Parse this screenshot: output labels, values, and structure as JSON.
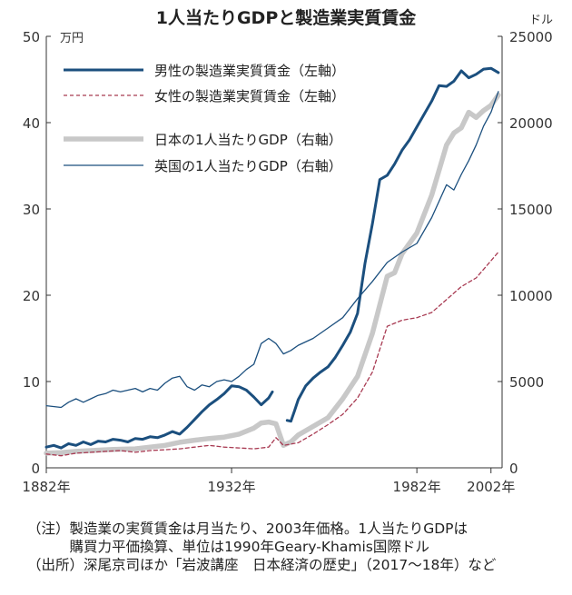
{
  "chart_data": {
    "type": "line",
    "title": "1人当たりGDPと製造業実質賃金",
    "y_left": {
      "unit": "万円",
      "ylim": [
        0,
        50
      ],
      "ticks": [
        "0",
        "10",
        "20",
        "30",
        "40",
        "50"
      ]
    },
    "y_right": {
      "unit": "ドル",
      "ylim": [
        0,
        25000
      ],
      "ticks": [
        "0",
        "5000",
        "10000",
        "15000",
        "20000",
        "25000"
      ]
    },
    "x": {
      "xlim": [
        1882,
        2005
      ],
      "tick_labels": [
        {
          "value": 1882,
          "label": "1882年"
        },
        {
          "value": 1932,
          "label": "1932年"
        },
        {
          "value": 1982,
          "label": "1982年"
        },
        {
          "value": 2002,
          "label": "2002年"
        }
      ]
    },
    "grid": false,
    "legend_placement": "top-left",
    "series": [
      {
        "name": "男性の製造業実質賃金（左軸）",
        "axis": "left",
        "color": "#1b4f7e",
        "style": "solid-thick",
        "segments": [
          [
            [
              1882,
              2.4
            ],
            [
              1884,
              2.6
            ],
            [
              1886,
              2.3
            ],
            [
              1888,
              2.8
            ],
            [
              1890,
              2.6
            ],
            [
              1892,
              3.0
            ],
            [
              1894,
              2.7
            ],
            [
              1896,
              3.1
            ],
            [
              1898,
              3.0
            ],
            [
              1900,
              3.3
            ],
            [
              1902,
              3.2
            ],
            [
              1904,
              3.0
            ],
            [
              1906,
              3.4
            ],
            [
              1908,
              3.3
            ],
            [
              1910,
              3.6
            ],
            [
              1912,
              3.5
            ],
            [
              1914,
              3.8
            ],
            [
              1916,
              4.2
            ],
            [
              1918,
              3.9
            ],
            [
              1920,
              4.7
            ],
            [
              1922,
              5.6
            ],
            [
              1924,
              6.5
            ],
            [
              1926,
              7.3
            ],
            [
              1928,
              7.9
            ],
            [
              1930,
              8.6
            ],
            [
              1932,
              9.5
            ],
            [
              1934,
              9.4
            ],
            [
              1936,
              9.0
            ],
            [
              1938,
              8.2
            ],
            [
              1940,
              7.3
            ],
            [
              1942,
              8.1
            ],
            [
              1943,
              8.8
            ]
          ],
          [
            [
              1947,
              5.5
            ],
            [
              1948,
              5.4
            ],
            [
              1949,
              6.6
            ],
            [
              1950,
              7.9
            ],
            [
              1952,
              9.5
            ],
            [
              1954,
              10.4
            ],
            [
              1956,
              11.1
            ],
            [
              1958,
              11.7
            ],
            [
              1960,
              12.8
            ],
            [
              1962,
              14.2
            ],
            [
              1964,
              15.7
            ],
            [
              1966,
              17.9
            ],
            [
              1968,
              23.7
            ],
            [
              1970,
              28.3
            ],
            [
              1972,
              33.4
            ],
            [
              1974,
              33.9
            ],
            [
              1976,
              35.2
            ],
            [
              1978,
              36.8
            ],
            [
              1980,
              38.0
            ],
            [
              1982,
              39.5
            ],
            [
              1984,
              41.0
            ],
            [
              1986,
              42.5
            ],
            [
              1988,
              44.3
            ],
            [
              1990,
              44.2
            ],
            [
              1992,
              44.8
            ],
            [
              1994,
              46.0
            ],
            [
              1996,
              45.2
            ],
            [
              1998,
              45.6
            ],
            [
              2000,
              46.2
            ],
            [
              2002,
              46.3
            ],
            [
              2004,
              45.8
            ]
          ]
        ]
      },
      {
        "name": "女性の製造業実質賃金（左軸）",
        "axis": "left",
        "color": "#a83a52",
        "style": "dashed",
        "segments": [
          [
            [
              1882,
              1.6
            ],
            [
              1886,
              1.4
            ],
            [
              1890,
              1.7
            ],
            [
              1894,
              1.8
            ],
            [
              1898,
              1.9
            ],
            [
              1902,
              2.0
            ],
            [
              1906,
              1.8
            ],
            [
              1910,
              2.0
            ],
            [
              1914,
              2.1
            ],
            [
              1918,
              2.2
            ],
            [
              1922,
              2.4
            ],
            [
              1926,
              2.6
            ],
            [
              1930,
              2.4
            ],
            [
              1934,
              2.3
            ],
            [
              1938,
              2.2
            ],
            [
              1942,
              2.4
            ],
            [
              1944,
              3.5
            ],
            [
              1946,
              2.6
            ],
            [
              1950,
              2.9
            ],
            [
              1954,
              3.9
            ],
            [
              1958,
              5.0
            ],
            [
              1962,
              6.2
            ],
            [
              1966,
              8.1
            ],
            [
              1970,
              11.1
            ],
            [
              1974,
              16.4
            ],
            [
              1978,
              17.1
            ],
            [
              1982,
              17.4
            ],
            [
              1986,
              18.0
            ],
            [
              1990,
              19.5
            ],
            [
              1994,
              21.0
            ],
            [
              1998,
              22.0
            ],
            [
              2002,
              24.0
            ],
            [
              2004,
              25.0
            ]
          ]
        ]
      },
      {
        "name": "日本の1人当たりGDP（右軸）",
        "axis": "right",
        "color": "#c8c8c8",
        "style": "solid-very-thick",
        "segments": [
          [
            [
              1882,
              850
            ],
            [
              1886,
              880
            ],
            [
              1890,
              950
            ],
            [
              1894,
              1000
            ],
            [
              1898,
              1050
            ],
            [
              1902,
              1080
            ],
            [
              1906,
              1100
            ],
            [
              1910,
              1200
            ],
            [
              1914,
              1300
            ],
            [
              1918,
              1480
            ],
            [
              1922,
              1600
            ],
            [
              1926,
              1700
            ],
            [
              1930,
              1780
            ],
            [
              1934,
              1950
            ],
            [
              1938,
              2300
            ],
            [
              1940,
              2600
            ],
            [
              1942,
              2650
            ],
            [
              1944,
              2550
            ],
            [
              1946,
              1300
            ],
            [
              1948,
              1500
            ],
            [
              1950,
              1900
            ],
            [
              1954,
              2400
            ],
            [
              1958,
              2900
            ],
            [
              1962,
              4000
            ],
            [
              1966,
              5300
            ],
            [
              1970,
              7800
            ],
            [
              1974,
              11100
            ],
            [
              1976,
              11300
            ],
            [
              1978,
              12400
            ],
            [
              1982,
              13600
            ],
            [
              1986,
              15800
            ],
            [
              1990,
              18700
            ],
            [
              1992,
              19400
            ],
            [
              1994,
              19700
            ],
            [
              1996,
              20600
            ],
            [
              1998,
              20300
            ],
            [
              2000,
              20700
            ],
            [
              2002,
              21000
            ],
            [
              2004,
              21600
            ]
          ]
        ]
      },
      {
        "name": "英国の1人当たりGDP（右軸）",
        "axis": "right",
        "color": "#1b4f7e",
        "style": "solid-thin",
        "segments": [
          [
            [
              1882,
              3600
            ],
            [
              1886,
              3500
            ],
            [
              1888,
              3800
            ],
            [
              1890,
              4000
            ],
            [
              1892,
              3800
            ],
            [
              1894,
              4000
            ],
            [
              1896,
              4200
            ],
            [
              1898,
              4300
            ],
            [
              1900,
              4500
            ],
            [
              1902,
              4400
            ],
            [
              1904,
              4500
            ],
            [
              1906,
              4600
            ],
            [
              1908,
              4400
            ],
            [
              1910,
              4600
            ],
            [
              1912,
              4500
            ],
            [
              1914,
              4900
            ],
            [
              1916,
              5200
            ],
            [
              1918,
              5300
            ],
            [
              1920,
              4700
            ],
            [
              1922,
              4500
            ],
            [
              1924,
              4800
            ],
            [
              1926,
              4700
            ],
            [
              1928,
              5000
            ],
            [
              1930,
              5100
            ],
            [
              1932,
              5000
            ],
            [
              1934,
              5300
            ],
            [
              1936,
              5700
            ],
            [
              1938,
              6000
            ],
            [
              1940,
              7200
            ],
            [
              1942,
              7500
            ],
            [
              1944,
              7200
            ],
            [
              1946,
              6600
            ],
            [
              1948,
              6800
            ],
            [
              1950,
              7100
            ],
            [
              1954,
              7500
            ],
            [
              1958,
              8100
            ],
            [
              1962,
              8700
            ],
            [
              1966,
              9800
            ],
            [
              1970,
              10800
            ],
            [
              1974,
              11900
            ],
            [
              1978,
              12500
            ],
            [
              1982,
              13000
            ],
            [
              1986,
              14500
            ],
            [
              1990,
              16400
            ],
            [
              1992,
              16100
            ],
            [
              1994,
              17000
            ],
            [
              1996,
              17800
            ],
            [
              1998,
              18700
            ],
            [
              2000,
              19800
            ],
            [
              2002,
              20600
            ],
            [
              2004,
              21800
            ]
          ]
        ]
      }
    ]
  },
  "notes": {
    "line1": "（注）製造業の実質賃金は月当たり、2003年価格。1人当たりGDPは",
    "line2": "　　　購買力平価換算、単位は1990年Geary-Khamis国際ドル",
    "line3": "（出所）深尾京司ほか「岩波講座　日本経済の歴史」（2017～18年）など"
  }
}
